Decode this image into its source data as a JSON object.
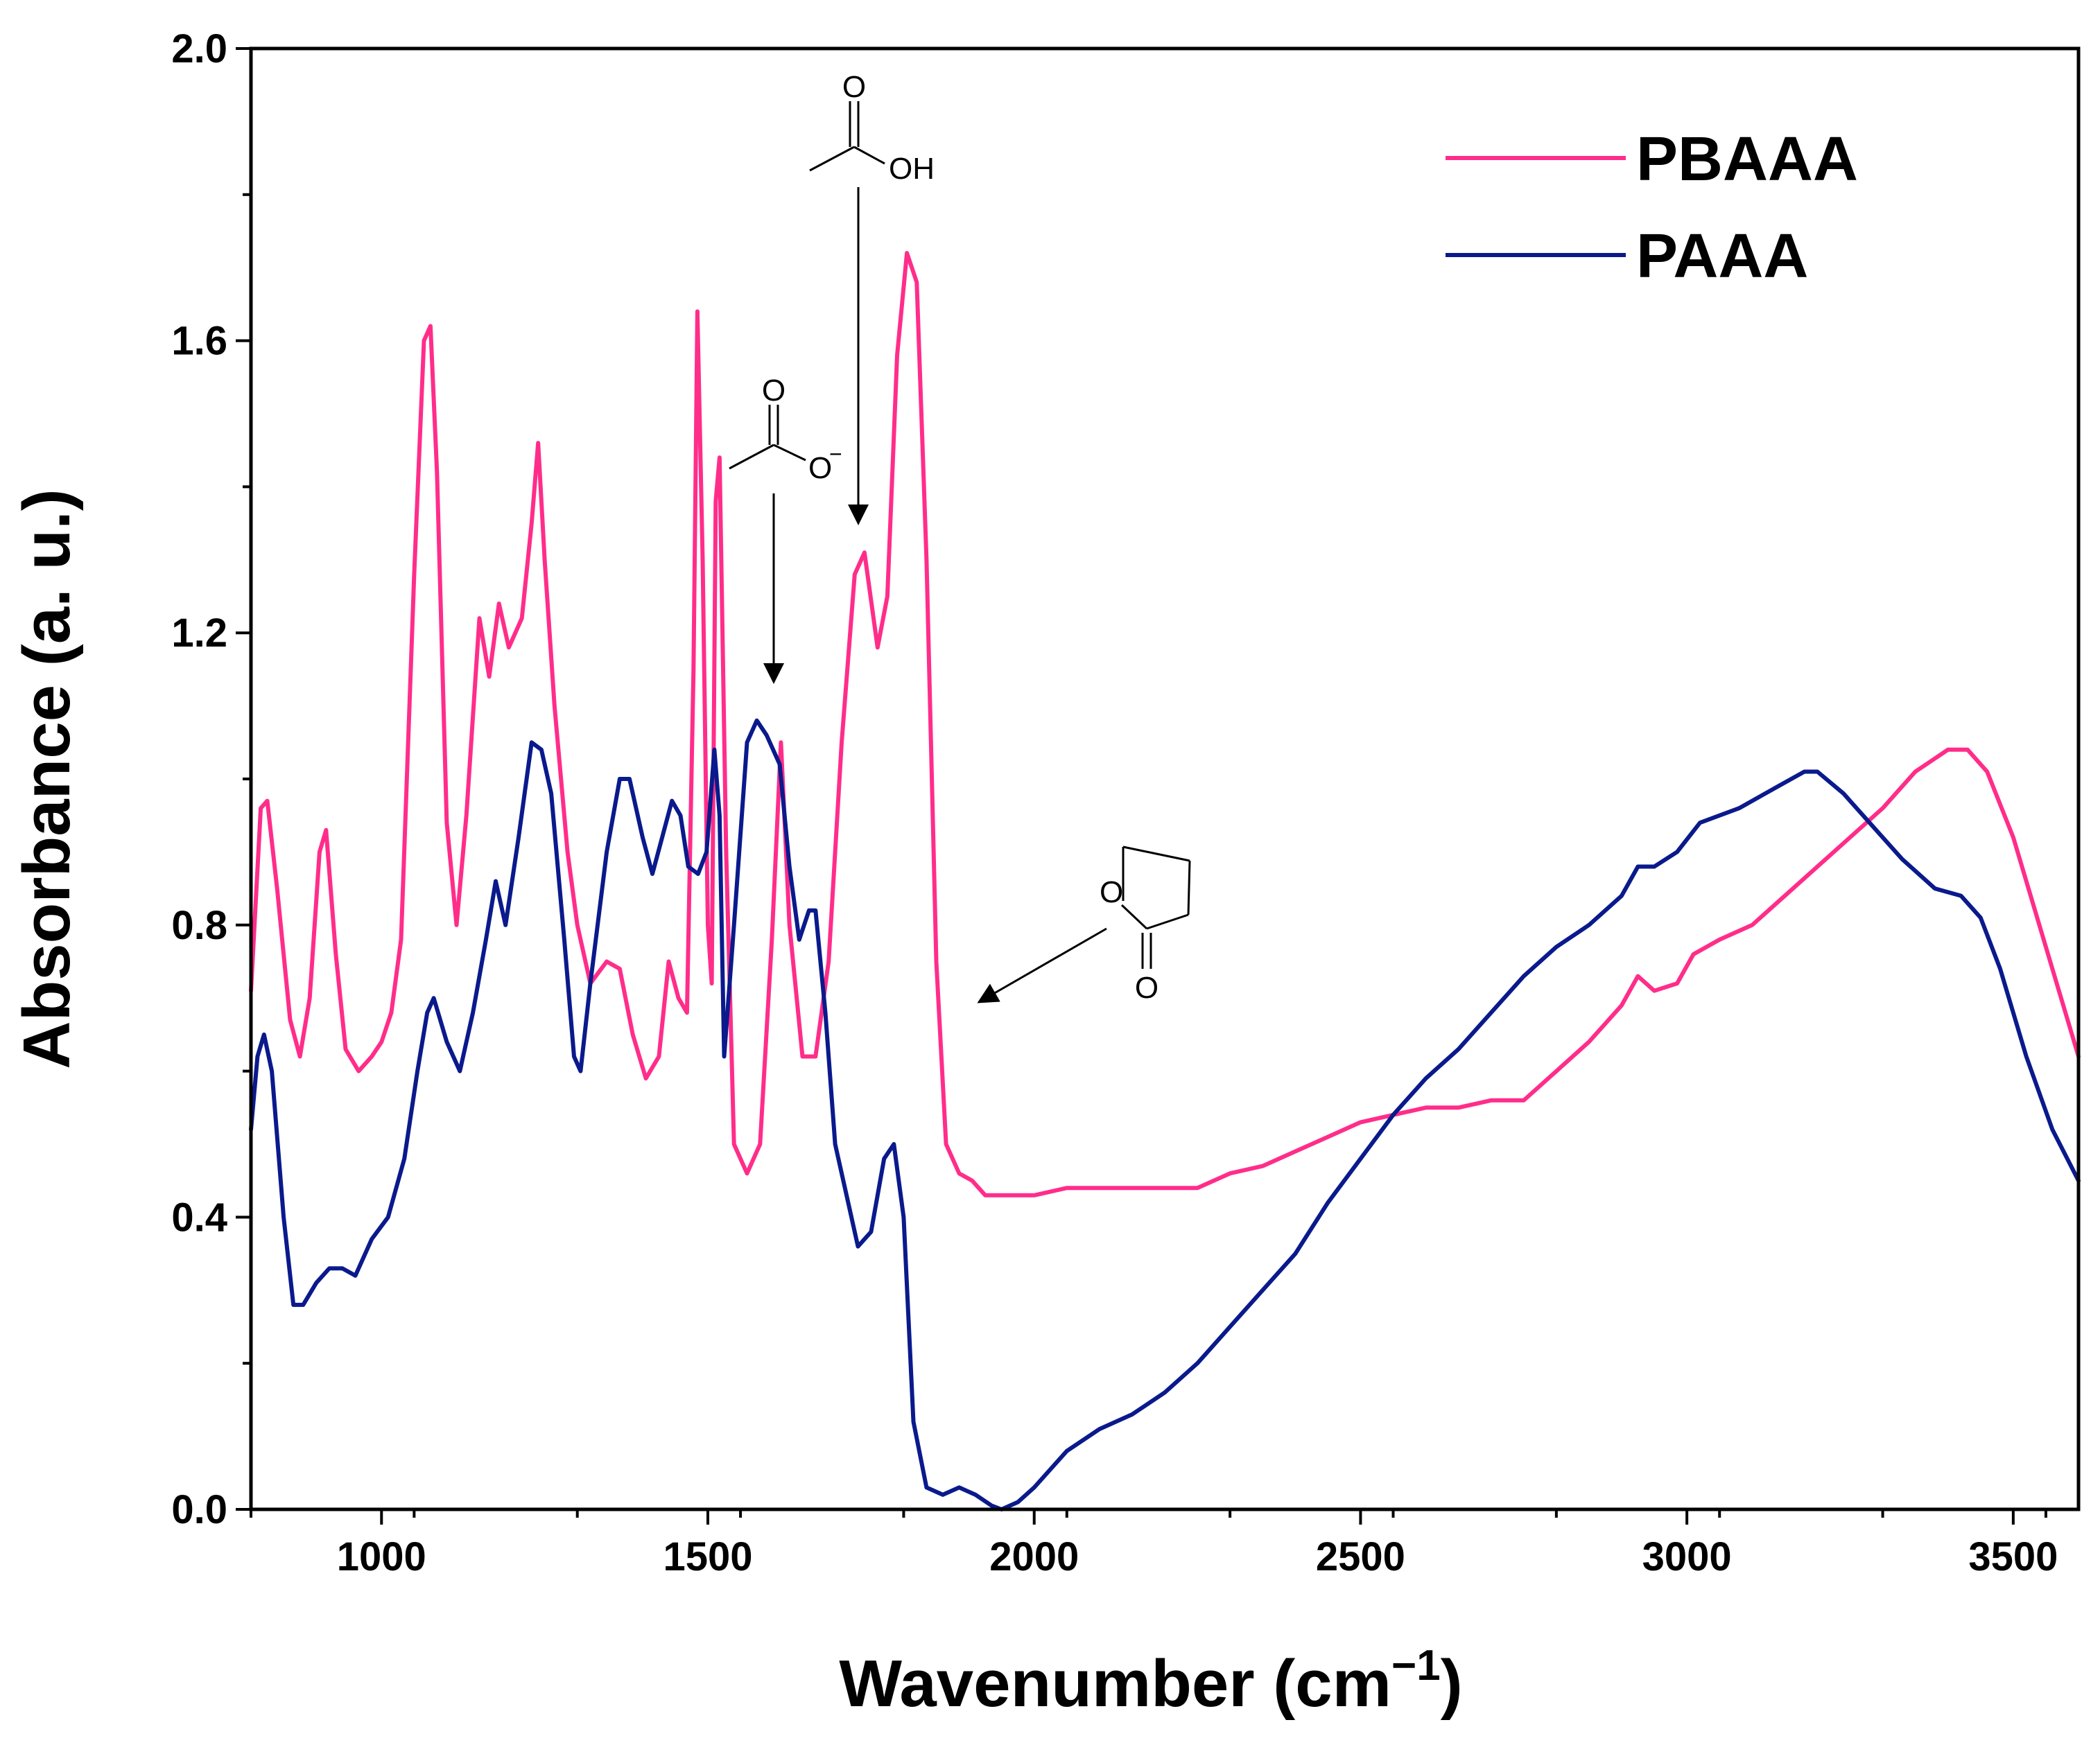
{
  "chart_data": {
    "type": "line",
    "title": "",
    "xlabel": "Wavenumber (cm",
    "xlabel_unit_exponent": "−1",
    "xlabel_close": ")",
    "ylabel": "Absorbance (a. u.)",
    "xlim": [
      800,
      3600
    ],
    "ylim": [
      0.0,
      2.0
    ],
    "x_ticks": [
      1000,
      1500,
      2000,
      2500,
      3000,
      3500
    ],
    "x_tick_labels": [
      "1000",
      "1500",
      "2000",
      "2500",
      "3000",
      "3500"
    ],
    "y_ticks": [
      0.0,
      0.4,
      0.8,
      1.2,
      1.6,
      2.0
    ],
    "y_tick_labels": [
      "0.0",
      "0.4",
      "0.8",
      "1.2",
      "1.6",
      "2.0"
    ],
    "grid": false,
    "legend_position": "top-right",
    "series": [
      {
        "name": "PBAAA",
        "color": "#ff2d8a",
        "points": [
          [
            800,
            0.71
          ],
          [
            815,
            0.96
          ],
          [
            825,
            0.97
          ],
          [
            840,
            0.85
          ],
          [
            860,
            0.67
          ],
          [
            875,
            0.62
          ],
          [
            890,
            0.7
          ],
          [
            905,
            0.9
          ],
          [
            915,
            0.93
          ],
          [
            930,
            0.76
          ],
          [
            945,
            0.63
          ],
          [
            965,
            0.6
          ],
          [
            985,
            0.62
          ],
          [
            1000,
            0.64
          ],
          [
            1015,
            0.68
          ],
          [
            1030,
            0.78
          ],
          [
            1050,
            1.28
          ],
          [
            1065,
            1.6
          ],
          [
            1075,
            1.62
          ],
          [
            1085,
            1.42
          ],
          [
            1100,
            0.94
          ],
          [
            1115,
            0.8
          ],
          [
            1130,
            0.95
          ],
          [
            1150,
            1.22
          ],
          [
            1165,
            1.14
          ],
          [
            1180,
            1.24
          ],
          [
            1195,
            1.18
          ],
          [
            1215,
            1.22
          ],
          [
            1230,
            1.35
          ],
          [
            1240,
            1.46
          ],
          [
            1250,
            1.3
          ],
          [
            1265,
            1.1
          ],
          [
            1285,
            0.9
          ],
          [
            1300,
            0.8
          ],
          [
            1320,
            0.72
          ],
          [
            1345,
            0.75
          ],
          [
            1365,
            0.74
          ],
          [
            1385,
            0.65
          ],
          [
            1405,
            0.59
          ],
          [
            1425,
            0.62
          ],
          [
            1440,
            0.75
          ],
          [
            1455,
            0.7
          ],
          [
            1468,
            0.68
          ],
          [
            1478,
            1.15
          ],
          [
            1484,
            1.64
          ],
          [
            1492,
            1.3
          ],
          [
            1500,
            0.8
          ],
          [
            1506,
            0.72
          ],
          [
            1512,
            1.38
          ],
          [
            1518,
            1.44
          ],
          [
            1528,
            0.9
          ],
          [
            1540,
            0.5
          ],
          [
            1560,
            0.46
          ],
          [
            1580,
            0.5
          ],
          [
            1598,
            0.78
          ],
          [
            1612,
            1.05
          ],
          [
            1625,
            0.8
          ],
          [
            1645,
            0.62
          ],
          [
            1665,
            0.62
          ],
          [
            1685,
            0.75
          ],
          [
            1705,
            1.05
          ],
          [
            1725,
            1.28
          ],
          [
            1740,
            1.31
          ],
          [
            1760,
            1.18
          ],
          [
            1775,
            1.25
          ],
          [
            1790,
            1.58
          ],
          [
            1805,
            1.72
          ],
          [
            1820,
            1.68
          ],
          [
            1835,
            1.3
          ],
          [
            1850,
            0.75
          ],
          [
            1865,
            0.5
          ],
          [
            1885,
            0.46
          ],
          [
            1905,
            0.45
          ],
          [
            1925,
            0.43
          ],
          [
            1950,
            0.43
          ],
          [
            2000,
            0.43
          ],
          [
            2050,
            0.44
          ],
          [
            2100,
            0.44
          ],
          [
            2150,
            0.44
          ],
          [
            2200,
            0.44
          ],
          [
            2250,
            0.44
          ],
          [
            2300,
            0.46
          ],
          [
            2350,
            0.47
          ],
          [
            2400,
            0.49
          ],
          [
            2450,
            0.51
          ],
          [
            2500,
            0.53
          ],
          [
            2550,
            0.54
          ],
          [
            2600,
            0.55
          ],
          [
            2650,
            0.55
          ],
          [
            2700,
            0.56
          ],
          [
            2750,
            0.56
          ],
          [
            2800,
            0.6
          ],
          [
            2850,
            0.64
          ],
          [
            2900,
            0.69
          ],
          [
            2925,
            0.73
          ],
          [
            2950,
            0.71
          ],
          [
            2985,
            0.72
          ],
          [
            3010,
            0.76
          ],
          [
            3050,
            0.78
          ],
          [
            3100,
            0.8
          ],
          [
            3150,
            0.84
          ],
          [
            3200,
            0.88
          ],
          [
            3250,
            0.92
          ],
          [
            3300,
            0.96
          ],
          [
            3350,
            1.01
          ],
          [
            3400,
            1.04
          ],
          [
            3430,
            1.04
          ],
          [
            3460,
            1.01
          ],
          [
            3500,
            0.92
          ],
          [
            3550,
            0.77
          ],
          [
            3600,
            0.62
          ]
        ]
      },
      {
        "name": "PAAA",
        "color": "#0a1a8c",
        "points": [
          [
            800,
            0.52
          ],
          [
            810,
            0.62
          ],
          [
            820,
            0.65
          ],
          [
            832,
            0.6
          ],
          [
            850,
            0.4
          ],
          [
            865,
            0.28
          ],
          [
            880,
            0.28
          ],
          [
            900,
            0.31
          ],
          [
            920,
            0.33
          ],
          [
            940,
            0.33
          ],
          [
            960,
            0.32
          ],
          [
            985,
            0.37
          ],
          [
            1010,
            0.4
          ],
          [
            1035,
            0.48
          ],
          [
            1055,
            0.6
          ],
          [
            1070,
            0.68
          ],
          [
            1080,
            0.7
          ],
          [
            1100,
            0.64
          ],
          [
            1120,
            0.6
          ],
          [
            1140,
            0.68
          ],
          [
            1160,
            0.78
          ],
          [
            1175,
            0.86
          ],
          [
            1190,
            0.8
          ],
          [
            1210,
            0.92
          ],
          [
            1230,
            1.05
          ],
          [
            1245,
            1.04
          ],
          [
            1260,
            0.98
          ],
          [
            1280,
            0.78
          ],
          [
            1295,
            0.62
          ],
          [
            1305,
            0.6
          ],
          [
            1320,
            0.72
          ],
          [
            1345,
            0.9
          ],
          [
            1365,
            1.0
          ],
          [
            1380,
            1.0
          ],
          [
            1400,
            0.92
          ],
          [
            1415,
            0.87
          ],
          [
            1430,
            0.92
          ],
          [
            1445,
            0.97
          ],
          [
            1458,
            0.95
          ],
          [
            1470,
            0.88
          ],
          [
            1485,
            0.87
          ],
          [
            1498,
            0.9
          ],
          [
            1510,
            1.04
          ],
          [
            1518,
            0.95
          ],
          [
            1525,
            0.62
          ],
          [
            1540,
            0.8
          ],
          [
            1560,
            1.05
          ],
          [
            1575,
            1.08
          ],
          [
            1590,
            1.06
          ],
          [
            1610,
            1.02
          ],
          [
            1625,
            0.88
          ],
          [
            1640,
            0.78
          ],
          [
            1655,
            0.82
          ],
          [
            1665,
            0.82
          ],
          [
            1680,
            0.68
          ],
          [
            1695,
            0.5
          ],
          [
            1715,
            0.42
          ],
          [
            1730,
            0.36
          ],
          [
            1750,
            0.38
          ],
          [
            1770,
            0.48
          ],
          [
            1785,
            0.5
          ],
          [
            1800,
            0.4
          ],
          [
            1815,
            0.12
          ],
          [
            1835,
            0.03
          ],
          [
            1860,
            0.02
          ],
          [
            1885,
            0.03
          ],
          [
            1910,
            0.02
          ],
          [
            1935,
            0.005
          ],
          [
            1950,
            0.0
          ],
          [
            1975,
            0.01
          ],
          [
            2000,
            0.03
          ],
          [
            2050,
            0.08
          ],
          [
            2100,
            0.11
          ],
          [
            2150,
            0.13
          ],
          [
            2200,
            0.16
          ],
          [
            2250,
            0.2
          ],
          [
            2300,
            0.25
          ],
          [
            2350,
            0.3
          ],
          [
            2400,
            0.35
          ],
          [
            2450,
            0.42
          ],
          [
            2500,
            0.48
          ],
          [
            2550,
            0.54
          ],
          [
            2600,
            0.59
          ],
          [
            2650,
            0.63
          ],
          [
            2700,
            0.68
          ],
          [
            2750,
            0.73
          ],
          [
            2800,
            0.77
          ],
          [
            2850,
            0.8
          ],
          [
            2900,
            0.84
          ],
          [
            2925,
            0.88
          ],
          [
            2950,
            0.88
          ],
          [
            2985,
            0.9
          ],
          [
            3020,
            0.94
          ],
          [
            3080,
            0.96
          ],
          [
            3140,
            0.99
          ],
          [
            3180,
            1.01
          ],
          [
            3200,
            1.01
          ],
          [
            3240,
            0.98
          ],
          [
            3280,
            0.94
          ],
          [
            3330,
            0.89
          ],
          [
            3380,
            0.85
          ],
          [
            3420,
            0.84
          ],
          [
            3450,
            0.81
          ],
          [
            3480,
            0.74
          ],
          [
            3520,
            0.62
          ],
          [
            3560,
            0.52
          ],
          [
            3600,
            0.45
          ]
        ]
      }
    ],
    "annotations": [
      {
        "label": "OH",
        "x": 1740,
        "y": 1.32
      },
      {
        "label": "O",
        "x": 1600,
        "y": 1.12
      },
      {
        "label": "O",
        "x": 1890,
        "y": 0.69
      }
    ]
  },
  "labels": {
    "carboxylic_acid_O": "O",
    "carboxylic_acid_OH": "OH",
    "carboxylate_O_top": "O",
    "carboxylate_O_bottom": "O",
    "carboxylate_charge": "−",
    "lactone_ring_O": "O",
    "lactone_carbonyl_O": "O"
  }
}
